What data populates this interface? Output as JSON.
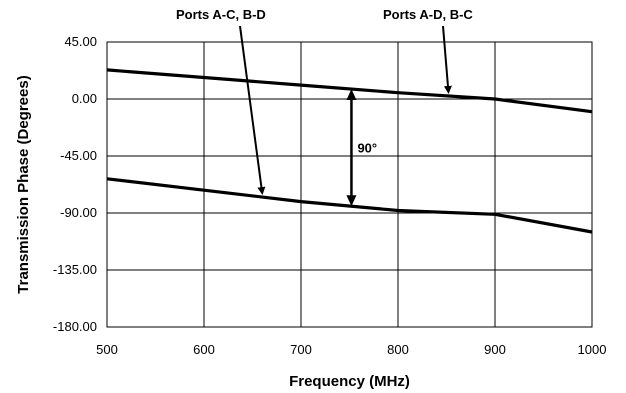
{
  "chart_data": {
    "type": "line",
    "xlabel": "Frequency (MHz)",
    "ylabel": "Transmission Phase (Degrees)",
    "xlim": [
      500,
      1000
    ],
    "ylim": [
      -180,
      45
    ],
    "x_ticks": [
      "500",
      "600",
      "700",
      "800",
      "900",
      "1000"
    ],
    "y_ticks": [
      "45.00",
      "0.00",
      "-45.00",
      "-90.00",
      "-135.00",
      "-180.00"
    ],
    "grid": true,
    "series": [
      {
        "name": "Ports A-D, B-C",
        "x": [
          500,
          600,
          700,
          800,
          900,
          1000
        ],
        "y": [
          23,
          17,
          11,
          5,
          0,
          -10
        ]
      },
      {
        "name": "Ports A-C, B-D",
        "x": [
          500,
          600,
          700,
          800,
          900,
          1000
        ],
        "y": [
          -63,
          -72,
          -81,
          -88,
          -91,
          -105
        ]
      }
    ],
    "annotations": {
      "phase_difference": "90°"
    }
  }
}
